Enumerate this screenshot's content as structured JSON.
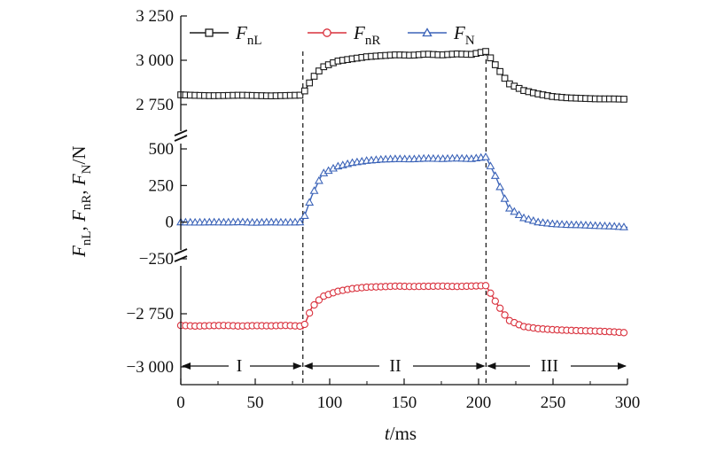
{
  "chart_data": {
    "type": "line",
    "xlabel": "t/ms",
    "ylabel": "F_nL, F_nR, F_N/N",
    "xlim": [
      0,
      300
    ],
    "xticks": [
      "0",
      "50",
      "100",
      "150",
      "200",
      "250",
      "300"
    ],
    "yticks": [
      "3 250",
      "3 000",
      "2 750",
      "500",
      "250",
      "0",
      "−250",
      "−2 750",
      "−3 000"
    ],
    "axis_breaks": 2,
    "legend_position": "top",
    "phase_boundaries_ms": [
      82,
      205
    ],
    "phases": [
      {
        "label": "I",
        "from": 0,
        "to": 82
      },
      {
        "label": "II",
        "from": 82,
        "to": 205
      },
      {
        "label": "III",
        "from": 205,
        "to": 300
      }
    ],
    "x": [
      0,
      10,
      20,
      30,
      40,
      50,
      60,
      70,
      80,
      82,
      88,
      95,
      105,
      115,
      125,
      135,
      145,
      155,
      165,
      175,
      185,
      195,
      205,
      212,
      220,
      230,
      240,
      250,
      260,
      270,
      280,
      290,
      300
    ],
    "series": [
      {
        "name": "F_nL",
        "color": "#1a1a1a",
        "marker": "square",
        "values": [
          2805,
          2802,
          2800,
          2801,
          2803,
          2801,
          2799,
          2801,
          2803,
          2810,
          2895,
          2960,
          2995,
          3008,
          3020,
          3026,
          3031,
          3028,
          3035,
          3030,
          3036,
          3033,
          3050,
          2965,
          2870,
          2830,
          2810,
          2795,
          2788,
          2785,
          2782,
          2782,
          2780
        ]
      },
      {
        "name": "F_N",
        "color": "#3b63b8",
        "marker": "triangle",
        "values": [
          0,
          -2,
          0,
          -1,
          1,
          -3,
          0,
          -2,
          0,
          10,
          180,
          330,
          380,
          405,
          420,
          428,
          432,
          430,
          435,
          432,
          436,
          432,
          445,
          300,
          100,
          30,
          0,
          -12,
          -18,
          -20,
          -25,
          -28,
          -35
        ]
      },
      {
        "name": "F_nR",
        "color": "#d9303c",
        "marker": "circle",
        "values": [
          -2805,
          -2808,
          -2806,
          -2805,
          -2808,
          -2806,
          -2807,
          -2805,
          -2808,
          -2820,
          -2720,
          -2670,
          -2645,
          -2632,
          -2625,
          -2623,
          -2620,
          -2622,
          -2621,
          -2620,
          -2622,
          -2620,
          -2618,
          -2700,
          -2780,
          -2810,
          -2820,
          -2825,
          -2828,
          -2830,
          -2832,
          -2835,
          -2840
        ]
      }
    ]
  },
  "labels": {
    "x_title_italic": "t",
    "x_title_rest": "/ms",
    "phase_1": "I",
    "phase_2": "II",
    "phase_3": "III",
    "legend_nL_main": "F",
    "legend_nL_sub": "nL",
    "legend_nR_main": "F",
    "legend_nR_sub": "nR",
    "legend_N_main": "F",
    "legend_N_sub": "N",
    "yt_1": "F",
    "ys_1": "nL",
    "ysep_1": ", ",
    "yt_2": "F",
    "ys_2": "nR",
    "ysep_2": ", ",
    "yt_3": "F",
    "ys_3": "N",
    "yunit": "/N"
  }
}
